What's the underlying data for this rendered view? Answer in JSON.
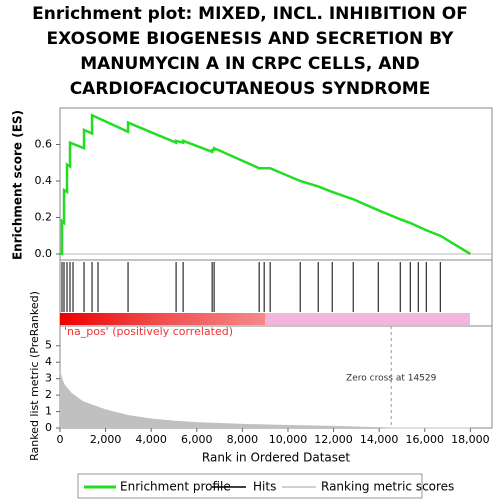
{
  "chart_data": [
    {
      "type": "line",
      "title": "Enrichment plot: MIXED, INCL. INHIBITION OF EXOSOME BIOGENESIS AND SECRETION BY MANUMYCIN A IN CRPC CELLS, AND CARDIOFACIOCUTANEOUS SYNDROME",
      "y_label": "Enrichment score (ES)",
      "xlim": [
        0,
        18950
      ],
      "ylim": [
        -0.033,
        0.8
      ],
      "yticks": [
        {
          "value": 0,
          "label": "0.0"
        },
        0.2,
        0.4,
        0.6
      ],
      "x": [
        0,
        88,
        88,
        176,
        176,
        307,
        307,
        439,
        439,
        1054,
        1054,
        1405,
        1405,
        2985,
        2985,
        5092,
        5092,
        5400,
        5400,
        6673,
        6673,
        6760,
        6760,
        8736,
        8955,
        9219,
        10536,
        11326,
        11940,
        12862,
        13960,
        14925,
        15364,
        15715,
        16067,
        16681,
        18000
      ],
      "series": [
        {
          "name": "Enrichment profile",
          "color": "#22dd22",
          "values": [
            0,
            0,
            0.18,
            0.17,
            0.35,
            0.34,
            0.49,
            0.48,
            0.61,
            0.58,
            0.68,
            0.66,
            0.76,
            0.67,
            0.72,
            0.61,
            0.62,
            0.61,
            0.62,
            0.56,
            0.57,
            0.57,
            0.58,
            0.47,
            0.47,
            0.47,
            0.4,
            0.37,
            0.34,
            0.3,
            0.24,
            0.19,
            0.17,
            0.15,
            0.13,
            0.1,
            0
          ]
        }
      ]
    },
    {
      "type": "rug",
      "name": "Hits",
      "color": "#000000",
      "xlim": [
        0,
        18950
      ],
      "x": [
        88,
        176,
        307,
        439,
        571,
        1054,
        1405,
        1668,
        2985,
        5092,
        5400,
        6673,
        6760,
        8736,
        8955,
        9219,
        10536,
        11326,
        11940,
        12862,
        13960,
        14925,
        15364,
        15715,
        16067,
        16681
      ]
    },
    {
      "type": "area",
      "y_label": "Ranked list metric (PreRanked)",
      "x_label": "Rank in Ordered Dataset",
      "label": "'na_pos' (positively correlated)",
      "annotation": "Zero cross at 14529",
      "zero_cross": 14529,
      "xlim": [
        0,
        18950
      ],
      "ylim": [
        0,
        6.2
      ],
      "xticks": [
        0,
        {
          "value": 2000,
          "label": "2,000"
        },
        {
          "value": 4000,
          "label": "4,000"
        },
        {
          "value": 6000,
          "label": "6,000"
        },
        {
          "value": 8000,
          "label": "8,000"
        },
        {
          "value": 10000,
          "label": "10,000"
        },
        {
          "value": 12000,
          "label": "12,000"
        },
        {
          "value": 14000,
          "label": "14,000"
        },
        {
          "value": 16000,
          "label": "16,000"
        },
        {
          "value": 18000,
          "label": "18,000"
        }
      ],
      "yticks": [
        0,
        1,
        2,
        3,
        4,
        5
      ],
      "x": [
        0,
        100,
        200,
        500,
        1000,
        2000,
        3000,
        4000,
        5000,
        6000,
        8000,
        10000,
        12000,
        14529,
        18000
      ],
      "series": [
        {
          "name": "Ranking metric scores",
          "color": "#c0c0c0",
          "values": [
            3.4,
            2.9,
            2.6,
            2.1,
            1.6,
            1.1,
            0.75,
            0.55,
            0.42,
            0.33,
            0.22,
            0.15,
            0.1,
            0,
            0
          ]
        }
      ]
    }
  ]
}
